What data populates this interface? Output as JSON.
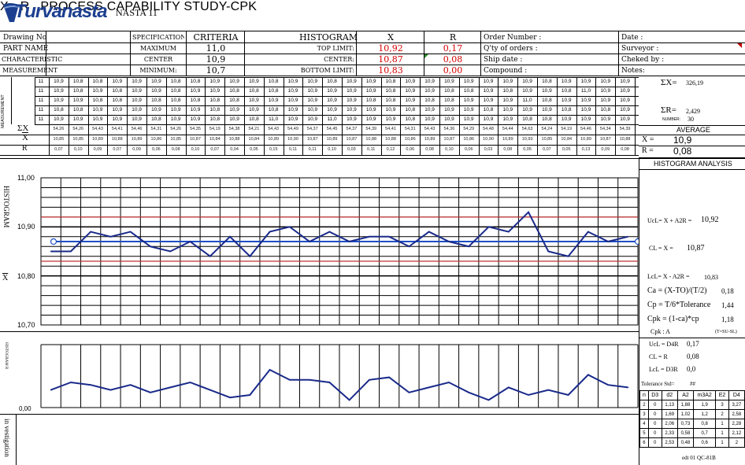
{
  "header": {
    "brand": "Turvanasta",
    "form_name": "NASTA 11",
    "title_xbar": "X",
    "title_dash": " - ",
    "title_r": "R",
    "title_text": "PROCESS CAPABILITY STUDY-CPK"
  },
  "info": {
    "drawing_no_label": "Drawing No",
    "part_name_label": "PART NAME",
    "characteristic_label": "CHARACTERISTIC",
    "measurement_label": "MEASUREMENT",
    "specification_label": "SPECIFICATION",
    "maximum_label": "MAXIMUM",
    "center_label": "CENTER",
    "minimum_label": "MINIMUM:",
    "criteria_label": "CRITERIA",
    "maximum_value": "11,0",
    "center_value": "10,9",
    "minimum_value": "10,7",
    "histogram_label": "HISTOGRAM",
    "top_limit_label": "TOP LIMIT:",
    "center2_label": "CENTER:",
    "bottom_limit_label": "BOTTOM LIMIT:",
    "x_head": "X",
    "r_head": "R",
    "x_top": "10,92",
    "x_center": "10,87",
    "x_bottom": "10,83",
    "r_top": "0,17",
    "r_center": "0,08",
    "r_bottom": "0,00",
    "order_number_label": "Order Number :",
    "qty_orders_label": "Q'ty of orders :",
    "ship_date_label": "Ship date :",
    "compound_label": "Compound :",
    "date_label": "Date :",
    "surveyor_label": "Surveyor :",
    "checked_by_label": "Cheked by :",
    "notes_label": "Notes:"
  },
  "measurements": {
    "side_label": "MEASUREMENT",
    "row_label": "11",
    "rows": [
      [
        "10,9",
        "10,8",
        "10,8",
        "10,9",
        "10,9",
        "10,9",
        "10,8",
        "10,8",
        "10,9",
        "10,9",
        "10,9",
        "10,8",
        "10,9",
        "10,9",
        "10,8",
        "10,9",
        "10,9",
        "10,8",
        "10,9",
        "10,9",
        "10,9",
        "10,9",
        "10,9",
        "10,9",
        "10,9",
        "10,8",
        "10,9",
        "10,9",
        "10,9",
        "10,9"
      ],
      [
        "10,9",
        "10,8",
        "10,9",
        "10,8",
        "10,9",
        "10,9",
        "10,8",
        "10,9",
        "10,9",
        "10,8",
        "10,8",
        "10,8",
        "10,9",
        "10,9",
        "10,9",
        "10,9",
        "10,9",
        "10,8",
        "10,9",
        "10,9",
        "10,8",
        "10,8",
        "10,9",
        "10,8",
        "10,9",
        "10,9",
        "10,8",
        "11,0",
        "10,9",
        "10,9"
      ],
      [
        "10,9",
        "10,9",
        "10,8",
        "10,8",
        "10,9",
        "10,8",
        "10,8",
        "10,8",
        "10,8",
        "10,8",
        "10,9",
        "10,9",
        "10,9",
        "10,9",
        "10,9",
        "10,9",
        "10,8",
        "10,8",
        "10,9",
        "10,8",
        "10,8",
        "10,9",
        "10,9",
        "10,9",
        "11,0",
        "10,8",
        "10,9",
        "10,9",
        "10,9",
        "10,9"
      ],
      [
        "10,8",
        "10,8",
        "10,9",
        "10,9",
        "10,9",
        "10,9",
        "10,9",
        "10,9",
        "10,8",
        "10,9",
        "10,9",
        "10,8",
        "10,9",
        "10,9",
        "10,9",
        "10,9",
        "10,9",
        "10,9",
        "10,8",
        "10,9",
        "10,9",
        "10,9",
        "10,8",
        "10,9",
        "10,9",
        "10,9",
        "10,8",
        "10,9",
        "10,8",
        "10,9"
      ],
      [
        "10,9",
        "10,9",
        "10,9",
        "10,9",
        "10,9",
        "10,8",
        "10,9",
        "10,9",
        "10,8",
        "10,9",
        "10,8",
        "11,0",
        "10,9",
        "10,9",
        "11,0",
        "10,9",
        "10,9",
        "10,9",
        "10,8",
        "10,9",
        "10,9",
        "10,9",
        "10,9",
        "10,9",
        "10,8",
        "10,8",
        "10,9",
        "10,9",
        "10,9",
        "10,9"
      ]
    ],
    "sum_label": "ΣX",
    "xbar_label": "X",
    "r_label": "R",
    "sums": [
      "54,26",
      "54,26",
      "54,43",
      "54,41",
      "54,46",
      "54,31",
      "54,26",
      "54,35",
      "54,19",
      "54,38",
      "54,21",
      "54,43",
      "54,49",
      "54,37",
      "54,45",
      "54,37",
      "54,39",
      "54,41",
      "54,31",
      "54,43",
      "54,36",
      "54,29",
      "54,48",
      "54,44",
      "54,63",
      "54,24",
      "54,19",
      "54,46",
      "54,34",
      "54,39"
    ],
    "xbars": [
      "10,85",
      "10,85",
      "10,89",
      "10,88",
      "10,89",
      "10,86",
      "10,85",
      "10,87",
      "10,84",
      "10,88",
      "10,84",
      "10,89",
      "10,90",
      "10,87",
      "10,89",
      "10,87",
      "10,88",
      "10,88",
      "10,86",
      "10,89",
      "10,87",
      "10,86",
      "10,90",
      "10,89",
      "10,93",
      "10,85",
      "10,84",
      "10,89",
      "10,87",
      "10,88"
    ],
    "ranges": [
      "0,07",
      "0,10",
      "0,09",
      "0,07",
      "0,09",
      "0,06",
      "0,08",
      "0,10",
      "0,07",
      "0,04",
      "0,05",
      "0,15",
      "0,11",
      "0,11",
      "0,10",
      "0,03",
      "0,11",
      "0,12",
      "0,06",
      "0,08",
      "0,10",
      "0,06",
      "0,03",
      "0,08",
      "0,05",
      "0,07",
      "0,05",
      "0,13",
      "0,09",
      "0,08"
    ]
  },
  "summary": {
    "sum_x_label": "ΣX=",
    "sum_x_value": "326,19",
    "sum_r_label": "ΣR=",
    "sum_r_value": "2,429",
    "number_label": "NUMBER:",
    "number_value": "30",
    "average_label": "AVERAGE",
    "xbar_eq": "X =",
    "xbar_avg": "10,9",
    "rbar_eq": "R =",
    "rbar_avg": "0,08"
  },
  "chart_labels": {
    "histogram_vert": "HISTOGRAM",
    "x_vert": "X",
    "y_1100": "11,00",
    "y_1090": "10,90",
    "y_1080": "10,80",
    "y_1070": "10,70",
    "r_vert": "HISTOGRAM R",
    "r_zero": "0,00",
    "investigation": "in vestigation"
  },
  "analysis": {
    "title": "HISTOGRAM ANALYSIS",
    "ucl_formula": "UcL= X + A2R =",
    "ucl_value": "10,92",
    "cl_formula": "CL = X =",
    "cl_value": "10,87",
    "lcl_formula": "LcL= X - A2R =",
    "lcl_value": "10,83",
    "ca_formula": "Ca = (X-TO)/(T/2)",
    "ca_value": "0,18",
    "cp_formula": "Cp = T/6*Tolerance",
    "cp_value": "1,44",
    "cpk_formula": "Cpk = (1-ca)*cp",
    "cpk_value": "1,18",
    "cpk_grade": "Cpk : A",
    "tsl_note": "(T=SU-SL)",
    "r_ucl_formula": "UcL = D4R",
    "r_ucl_value": "0,17",
    "r_cl_formula": "CL = R",
    "r_cl_value": "0,08",
    "r_lcl_formula": "LcL = D3R",
    "r_lcl_value": "0,0",
    "tolerance_label": "Tolerance Std=",
    "tolerance_value": "##",
    "const_headers": [
      "n",
      "D3",
      "d2",
      "A2",
      "m3A2",
      "E2",
      "D4"
    ],
    "const_rows": [
      [
        "2",
        "0",
        "1,13",
        "1,88",
        "1,9",
        "3",
        "3,27"
      ],
      [
        "3",
        "0",
        "1,69",
        "1,02",
        "1,2",
        "2",
        "2,58"
      ],
      [
        "4",
        "0",
        "2,06",
        "0,73",
        "0,8",
        "1",
        "2,28"
      ],
      [
        "5",
        "0",
        "2,33",
        "0,58",
        "0,7",
        "1",
        "2,12"
      ],
      [
        "6",
        "0",
        "2,53",
        "0,48",
        "0,6",
        "1",
        "2"
      ]
    ],
    "edition": "edt 01  QC-81B"
  },
  "chart_data": [
    {
      "type": "line",
      "x": [
        1,
        2,
        3,
        4,
        5,
        6,
        7,
        8,
        9,
        10,
        11,
        12,
        13,
        14,
        15,
        16,
        17,
        18,
        19,
        20,
        21,
        22,
        23,
        24,
        25,
        26,
        27,
        28,
        29,
        30
      ],
      "series": [
        {
          "values": [
            10.85,
            10.85,
            10.89,
            10.88,
            10.89,
            10.86,
            10.85,
            10.87,
            10.84,
            10.88,
            10.84,
            10.89,
            10.9,
            10.87,
            10.89,
            10.87,
            10.88,
            10.88,
            10.86,
            10.89,
            10.87,
            10.86,
            10.9,
            10.89,
            10.93,
            10.85,
            10.84,
            10.89,
            10.87,
            10.88
          ]
        }
      ],
      "ylim": [
        10.7,
        11.0
      ],
      "ucl": 10.92,
      "cl": 10.87,
      "lcl": 10.83,
      "line_color": "#1a2a8a",
      "cl_color": "#1f4fc4",
      "limit_color": "#c03030"
    },
    {
      "type": "line",
      "x": [
        1,
        2,
        3,
        4,
        5,
        6,
        7,
        8,
        9,
        10,
        11,
        12,
        13,
        14,
        15,
        16,
        17,
        18,
        19,
        20,
        21,
        22,
        23,
        24,
        25,
        26,
        27,
        28,
        29,
        30
      ],
      "series": [
        {
          "values": [
            0.07,
            0.1,
            0.09,
            0.07,
            0.09,
            0.06,
            0.08,
            0.1,
            0.07,
            0.04,
            0.05,
            0.15,
            0.11,
            0.11,
            0.1,
            0.03,
            0.11,
            0.12,
            0.06,
            0.08,
            0.1,
            0.06,
            0.03,
            0.08,
            0.05,
            0.07,
            0.05,
            0.13,
            0.09,
            0.08
          ]
        }
      ],
      "ylim": [
        0,
        0.25
      ],
      "line_color": "#1a2a8a"
    }
  ]
}
